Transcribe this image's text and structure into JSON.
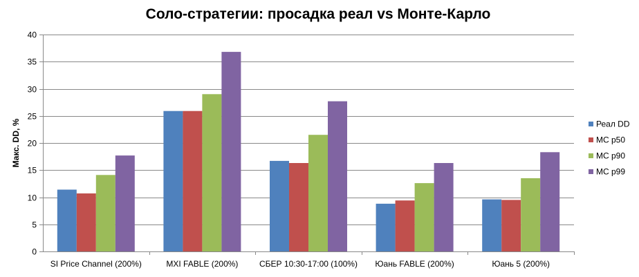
{
  "chart_data": {
    "type": "bar",
    "title": "Соло-стратегии: просадка реал vs Монте-Карло",
    "xlabel": "",
    "ylabel": "Макс. DD, %",
    "ylim": [
      0,
      40
    ],
    "yticks": [
      0,
      5,
      10,
      15,
      20,
      25,
      30,
      35,
      40
    ],
    "grid": true,
    "legend_position": "right",
    "categories": [
      "SI Price Channel (200%)",
      "MXI FABLE (200%)",
      "СБЕР 10:30-17:00 (100%)",
      "Юань FABLE (200%)",
      "Юань 5 (200%)"
    ],
    "series": [
      {
        "name": "Реал DD",
        "color": "#4F81BD",
        "values": [
          11.4,
          25.9,
          16.7,
          8.8,
          9.6
        ]
      },
      {
        "name": "MC p50",
        "color": "#C0504D",
        "values": [
          10.7,
          25.9,
          16.3,
          9.4,
          9.5
        ]
      },
      {
        "name": "MC p90",
        "color": "#9BBB59",
        "values": [
          14.1,
          29.0,
          21.5,
          12.6,
          13.5
        ]
      },
      {
        "name": "MC p99",
        "color": "#8064A2",
        "values": [
          17.7,
          36.8,
          27.7,
          16.3,
          18.3
        ]
      }
    ]
  }
}
